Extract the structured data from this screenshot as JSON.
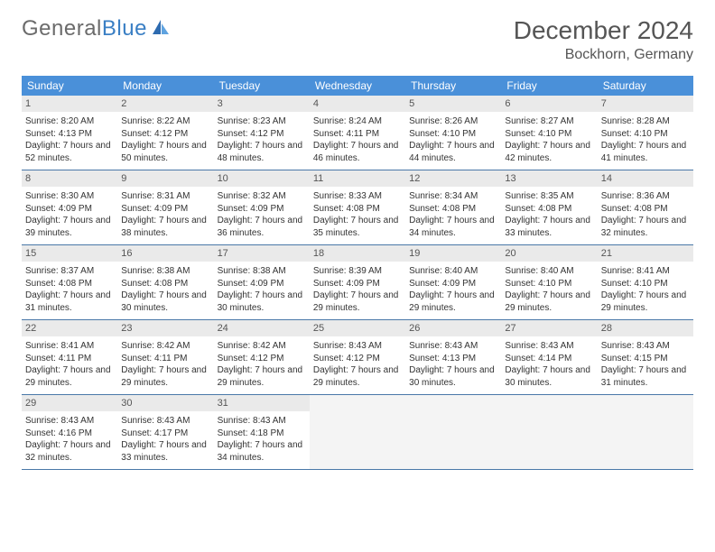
{
  "brand": {
    "part1": "General",
    "part2": "Blue"
  },
  "title": "December 2024",
  "location": "Bockhorn, Germany",
  "colors": {
    "header_bg": "#4a90d9",
    "header_text": "#ffffff",
    "daynum_bg": "#eaeaea",
    "daynum_text": "#555555",
    "border": "#4a78a8",
    "body_text": "#333333",
    "title_text": "#555555",
    "logo_gray": "#6b6b6b",
    "logo_blue": "#3a7fc4",
    "empty_bg": "#f4f4f4",
    "page_bg": "#ffffff"
  },
  "typography": {
    "title_fontsize": 28,
    "location_fontsize": 16,
    "dayhead_fontsize": 12,
    "daynum_fontsize": 11,
    "body_fontsize": 10
  },
  "layout": {
    "columns": 7,
    "rows": 5
  },
  "dayNames": [
    "Sunday",
    "Monday",
    "Tuesday",
    "Wednesday",
    "Thursday",
    "Friday",
    "Saturday"
  ],
  "weeks": [
    [
      {
        "n": "1",
        "sr": "Sunrise: 8:20 AM",
        "ss": "Sunset: 4:13 PM",
        "dl": "Daylight: 7 hours and 52 minutes."
      },
      {
        "n": "2",
        "sr": "Sunrise: 8:22 AM",
        "ss": "Sunset: 4:12 PM",
        "dl": "Daylight: 7 hours and 50 minutes."
      },
      {
        "n": "3",
        "sr": "Sunrise: 8:23 AM",
        "ss": "Sunset: 4:12 PM",
        "dl": "Daylight: 7 hours and 48 minutes."
      },
      {
        "n": "4",
        "sr": "Sunrise: 8:24 AM",
        "ss": "Sunset: 4:11 PM",
        "dl": "Daylight: 7 hours and 46 minutes."
      },
      {
        "n": "5",
        "sr": "Sunrise: 8:26 AM",
        "ss": "Sunset: 4:10 PM",
        "dl": "Daylight: 7 hours and 44 minutes."
      },
      {
        "n": "6",
        "sr": "Sunrise: 8:27 AM",
        "ss": "Sunset: 4:10 PM",
        "dl": "Daylight: 7 hours and 42 minutes."
      },
      {
        "n": "7",
        "sr": "Sunrise: 8:28 AM",
        "ss": "Sunset: 4:10 PM",
        "dl": "Daylight: 7 hours and 41 minutes."
      }
    ],
    [
      {
        "n": "8",
        "sr": "Sunrise: 8:30 AM",
        "ss": "Sunset: 4:09 PM",
        "dl": "Daylight: 7 hours and 39 minutes."
      },
      {
        "n": "9",
        "sr": "Sunrise: 8:31 AM",
        "ss": "Sunset: 4:09 PM",
        "dl": "Daylight: 7 hours and 38 minutes."
      },
      {
        "n": "10",
        "sr": "Sunrise: 8:32 AM",
        "ss": "Sunset: 4:09 PM",
        "dl": "Daylight: 7 hours and 36 minutes."
      },
      {
        "n": "11",
        "sr": "Sunrise: 8:33 AM",
        "ss": "Sunset: 4:08 PM",
        "dl": "Daylight: 7 hours and 35 minutes."
      },
      {
        "n": "12",
        "sr": "Sunrise: 8:34 AM",
        "ss": "Sunset: 4:08 PM",
        "dl": "Daylight: 7 hours and 34 minutes."
      },
      {
        "n": "13",
        "sr": "Sunrise: 8:35 AM",
        "ss": "Sunset: 4:08 PM",
        "dl": "Daylight: 7 hours and 33 minutes."
      },
      {
        "n": "14",
        "sr": "Sunrise: 8:36 AM",
        "ss": "Sunset: 4:08 PM",
        "dl": "Daylight: 7 hours and 32 minutes."
      }
    ],
    [
      {
        "n": "15",
        "sr": "Sunrise: 8:37 AM",
        "ss": "Sunset: 4:08 PM",
        "dl": "Daylight: 7 hours and 31 minutes."
      },
      {
        "n": "16",
        "sr": "Sunrise: 8:38 AM",
        "ss": "Sunset: 4:08 PM",
        "dl": "Daylight: 7 hours and 30 minutes."
      },
      {
        "n": "17",
        "sr": "Sunrise: 8:38 AM",
        "ss": "Sunset: 4:09 PM",
        "dl": "Daylight: 7 hours and 30 minutes."
      },
      {
        "n": "18",
        "sr": "Sunrise: 8:39 AM",
        "ss": "Sunset: 4:09 PM",
        "dl": "Daylight: 7 hours and 29 minutes."
      },
      {
        "n": "19",
        "sr": "Sunrise: 8:40 AM",
        "ss": "Sunset: 4:09 PM",
        "dl": "Daylight: 7 hours and 29 minutes."
      },
      {
        "n": "20",
        "sr": "Sunrise: 8:40 AM",
        "ss": "Sunset: 4:10 PM",
        "dl": "Daylight: 7 hours and 29 minutes."
      },
      {
        "n": "21",
        "sr": "Sunrise: 8:41 AM",
        "ss": "Sunset: 4:10 PM",
        "dl": "Daylight: 7 hours and 29 minutes."
      }
    ],
    [
      {
        "n": "22",
        "sr": "Sunrise: 8:41 AM",
        "ss": "Sunset: 4:11 PM",
        "dl": "Daylight: 7 hours and 29 minutes."
      },
      {
        "n": "23",
        "sr": "Sunrise: 8:42 AM",
        "ss": "Sunset: 4:11 PM",
        "dl": "Daylight: 7 hours and 29 minutes."
      },
      {
        "n": "24",
        "sr": "Sunrise: 8:42 AM",
        "ss": "Sunset: 4:12 PM",
        "dl": "Daylight: 7 hours and 29 minutes."
      },
      {
        "n": "25",
        "sr": "Sunrise: 8:43 AM",
        "ss": "Sunset: 4:12 PM",
        "dl": "Daylight: 7 hours and 29 minutes."
      },
      {
        "n": "26",
        "sr": "Sunrise: 8:43 AM",
        "ss": "Sunset: 4:13 PM",
        "dl": "Daylight: 7 hours and 30 minutes."
      },
      {
        "n": "27",
        "sr": "Sunrise: 8:43 AM",
        "ss": "Sunset: 4:14 PM",
        "dl": "Daylight: 7 hours and 30 minutes."
      },
      {
        "n": "28",
        "sr": "Sunrise: 8:43 AM",
        "ss": "Sunset: 4:15 PM",
        "dl": "Daylight: 7 hours and 31 minutes."
      }
    ],
    [
      {
        "n": "29",
        "sr": "Sunrise: 8:43 AM",
        "ss": "Sunset: 4:16 PM",
        "dl": "Daylight: 7 hours and 32 minutes."
      },
      {
        "n": "30",
        "sr": "Sunrise: 8:43 AM",
        "ss": "Sunset: 4:17 PM",
        "dl": "Daylight: 7 hours and 33 minutes."
      },
      {
        "n": "31",
        "sr": "Sunrise: 8:43 AM",
        "ss": "Sunset: 4:18 PM",
        "dl": "Daylight: 7 hours and 34 minutes."
      },
      null,
      null,
      null,
      null
    ]
  ]
}
